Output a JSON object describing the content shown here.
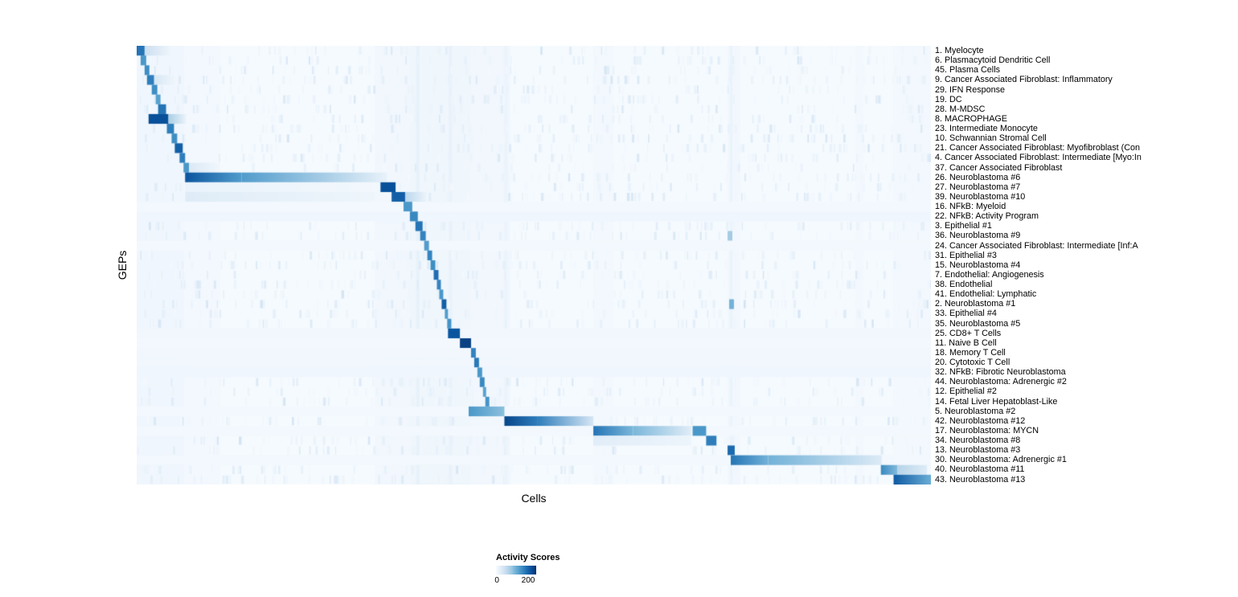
{
  "chart_data": {
    "type": "heatmap",
    "title": "",
    "xlabel": "Cells",
    "ylabel": "GEPs",
    "grid": false,
    "legend": {
      "title": "Activity Scores",
      "position": "bottom",
      "tick_labels": [
        "0",
        "200"
      ],
      "tick_positions": [
        0,
        0.8
      ],
      "min": 0,
      "max": 200
    },
    "palette": [
      "#f7fbff",
      "#deebf7",
      "#c6dbef",
      "#9ecae1",
      "#6baed6",
      "#4292c6",
      "#2171b5",
      "#08519c",
      "#08306b"
    ],
    "value_range": [
      0,
      250
    ],
    "noise": {
      "seed": 11,
      "count": 3200,
      "max_v": 42
    },
    "column_bands": [
      [
        0.0,
        0.06,
        9
      ],
      [
        0.06,
        0.105,
        5
      ],
      [
        0.3,
        0.345,
        8
      ],
      [
        0.345,
        0.42,
        10
      ],
      [
        0.352,
        0.356,
        20
      ],
      [
        0.393,
        0.397,
        18
      ],
      [
        0.42,
        0.47,
        7
      ],
      [
        0.463,
        0.467,
        14
      ],
      [
        0.575,
        0.6,
        6
      ],
      [
        0.744,
        0.76,
        8
      ],
      [
        0.747,
        0.75,
        16
      ],
      [
        0.905,
        0.915,
        6
      ],
      [
        0.953,
        1.0,
        6
      ]
    ],
    "rows": [
      {
        "label": "1. Myelocyte",
        "blocks": [
          [
            0.0,
            0.01,
            185
          ],
          [
            0.01,
            0.045,
            55,
            8
          ]
        ]
      },
      {
        "label": "6. Plasmacytoid Dendritic Cell",
        "blocks": [
          [
            0.005,
            0.012,
            150
          ]
        ]
      },
      {
        "label": "45. Plasma Cells",
        "blocks": [
          [
            0.01,
            0.016,
            160
          ]
        ]
      },
      {
        "label": "9. Cancer Associated Fibroblast: Inflammatory",
        "blocks": [
          [
            0.013,
            0.022,
            175
          ],
          [
            0.022,
            0.05,
            40,
            8
          ]
        ]
      },
      {
        "label": "29. IFN Response",
        "blocks": [
          [
            0.019,
            0.026,
            160
          ]
        ]
      },
      {
        "label": "19. DC",
        "blocks": [
          [
            0.024,
            0.03,
            140
          ]
        ]
      },
      {
        "label": "28. M-MDSC",
        "blocks": [
          [
            0.027,
            0.037,
            185
          ]
        ]
      },
      {
        "label": "8. MACROPHAGE",
        "blocks": [
          [
            0.015,
            0.04,
            220
          ],
          [
            0.04,
            0.062,
            85,
            15
          ]
        ]
      },
      {
        "label": "23. Intermediate Monocyte",
        "blocks": [
          [
            0.038,
            0.047,
            175
          ]
        ]
      },
      {
        "label": "10. Schwannian Stromal Cell",
        "blocks": [
          [
            0.044,
            0.051,
            160
          ]
        ]
      },
      {
        "label": "21. Cancer Associated Fibroblast: Myofibroblast (Con",
        "blocks": [
          [
            0.048,
            0.058,
            205
          ]
        ]
      },
      {
        "label": "4. Cancer Associated Fibroblast: Intermediate [Myo:In",
        "blocks": [
          [
            0.054,
            0.061,
            175
          ]
        ]
      },
      {
        "label": "37. Cancer Associated Fibroblast",
        "blocks": [
          [
            0.059,
            0.066,
            150
          ],
          [
            0.066,
            0.105,
            35,
            8
          ]
        ]
      },
      {
        "label": "26. Neuroblastoma #6",
        "blocks": [
          [
            0.061,
            0.132,
            215,
            145
          ],
          [
            0.132,
            0.315,
            145,
            18
          ]
        ]
      },
      {
        "label": "27. Neuroblastoma #7",
        "blocks": [
          [
            0.061,
            0.3,
            16,
            6
          ],
          [
            0.307,
            0.326,
            220
          ]
        ]
      },
      {
        "label": "39. Neuroblastoma #10",
        "blocks": [
          [
            0.061,
            0.3,
            30,
            10
          ],
          [
            0.321,
            0.338,
            205
          ],
          [
            0.338,
            0.365,
            70,
            14
          ]
        ]
      },
      {
        "label": "16. NFkB: Myeloid",
        "blocks": [
          [
            0.0,
            1.0,
            6
          ],
          [
            0.336,
            0.347,
            150
          ]
        ]
      },
      {
        "label": "22. NFkB: Activity Program",
        "blocks": [
          [
            0.0,
            1.0,
            9
          ],
          [
            0.344,
            0.354,
            165
          ]
        ]
      },
      {
        "label": "3. Epithelial #1",
        "blocks": [
          [
            0.351,
            0.36,
            185
          ]
        ]
      },
      {
        "label": "36. Neuroblastoma #9",
        "blocks": [
          [
            0.357,
            0.364,
            170
          ],
          [
            0.744,
            0.75,
            90
          ]
        ]
      },
      {
        "label": "24. Cancer Associated Fibroblast: Intermediate [Inf:A",
        "blocks": [
          [
            0.0,
            1.0,
            6
          ],
          [
            0.362,
            0.368,
            145
          ]
        ]
      },
      {
        "label": "31. Epithelial #3",
        "blocks": [
          [
            0.366,
            0.372,
            170
          ]
        ]
      },
      {
        "label": "15. Neuroblastoma #4",
        "blocks": [
          [
            0.37,
            0.376,
            160
          ]
        ]
      },
      {
        "label": "7. Endothelial: Angiogenesis",
        "blocks": [
          [
            0.374,
            0.38,
            190
          ]
        ]
      },
      {
        "label": "38. Endothelial",
        "blocks": [
          [
            0.378,
            0.383,
            170
          ]
        ]
      },
      {
        "label": "41. Endothelial: Lymphatic",
        "blocks": [
          [
            0.381,
            0.386,
            150
          ]
        ]
      },
      {
        "label": "2. Neuroblastoma #1",
        "blocks": [
          [
            0.384,
            0.39,
            205
          ],
          [
            0.746,
            0.752,
            120
          ]
        ]
      },
      {
        "label": "33. Epithelial #4",
        "blocks": [
          [
            0.388,
            0.392,
            145
          ]
        ]
      },
      {
        "label": "35. Neuroblastoma #5",
        "blocks": [
          [
            0.391,
            0.396,
            155
          ]
        ]
      },
      {
        "label": "25. CD8+ T Cells",
        "blocks": [
          [
            0.0,
            1.0,
            8
          ],
          [
            0.392,
            0.407,
            215
          ]
        ]
      },
      {
        "label": "11. Naive B Cell",
        "blocks": [
          [
            0.0,
            1.0,
            6
          ],
          [
            0.407,
            0.421,
            235
          ]
        ]
      },
      {
        "label": "18. Memory T Cell",
        "blocks": [
          [
            0.0,
            1.0,
            7
          ],
          [
            0.421,
            0.427,
            170
          ]
        ]
      },
      {
        "label": "20. Cytotoxic T Cell",
        "blocks": [
          [
            0.0,
            1.0,
            7
          ],
          [
            0.425,
            0.431,
            180
          ]
        ]
      },
      {
        "label": "32. NFkB: Fibrotic Neuroblastoma",
        "blocks": [
          [
            0.0,
            1.0,
            9
          ],
          [
            0.429,
            0.435,
            150
          ]
        ]
      },
      {
        "label": "44. Neuroblastoma: Adrenergic #2",
        "blocks": [
          [
            0.432,
            0.438,
            165
          ]
        ]
      },
      {
        "label": "12. Epithelial #2",
        "blocks": [
          [
            0.436,
            0.44,
            140
          ]
        ]
      },
      {
        "label": "14. Fetal Liver Hepatoblast-Like",
        "blocks": [
          [
            0.439,
            0.444,
            155
          ]
        ]
      },
      {
        "label": "5. Neuroblastoma #2",
        "blocks": [
          [
            0.0,
            1.0,
            6
          ],
          [
            0.418,
            0.463,
            150,
            105
          ]
        ]
      },
      {
        "label": "42. Neuroblastoma #12",
        "blocks": [
          [
            0.463,
            0.505,
            230,
            175
          ],
          [
            0.505,
            0.575,
            175,
            40
          ]
        ]
      },
      {
        "label": "17. Neuroblastoma: MYCN",
        "blocks": [
          [
            0.0,
            1.0,
            6
          ],
          [
            0.575,
            0.625,
            185,
            115
          ],
          [
            0.625,
            0.698,
            115,
            28
          ],
          [
            0.7,
            0.717,
            150
          ]
        ]
      },
      {
        "label": "34. Neuroblastoma #8",
        "blocks": [
          [
            0.575,
            0.698,
            28,
            12
          ],
          [
            0.717,
            0.73,
            175
          ]
        ]
      },
      {
        "label": "13. Neuroblastoma #3",
        "blocks": [
          [
            0.744,
            0.753,
            195
          ]
        ]
      },
      {
        "label": "30. Neuroblastoma: Adrenergic #1",
        "blocks": [
          [
            0.0,
            1.0,
            6
          ],
          [
            0.748,
            0.795,
            185,
            120
          ],
          [
            0.795,
            0.938,
            120,
            32
          ]
        ]
      },
      {
        "label": "40. Neuroblastoma #11",
        "blocks": [
          [
            0.937,
            0.958,
            165,
            110
          ],
          [
            0.958,
            0.995,
            75,
            30
          ]
        ]
      },
      {
        "label": "43. Neuroblastoma #13",
        "blocks": [
          [
            0.953,
            1.0,
            210,
            125
          ]
        ]
      }
    ]
  }
}
